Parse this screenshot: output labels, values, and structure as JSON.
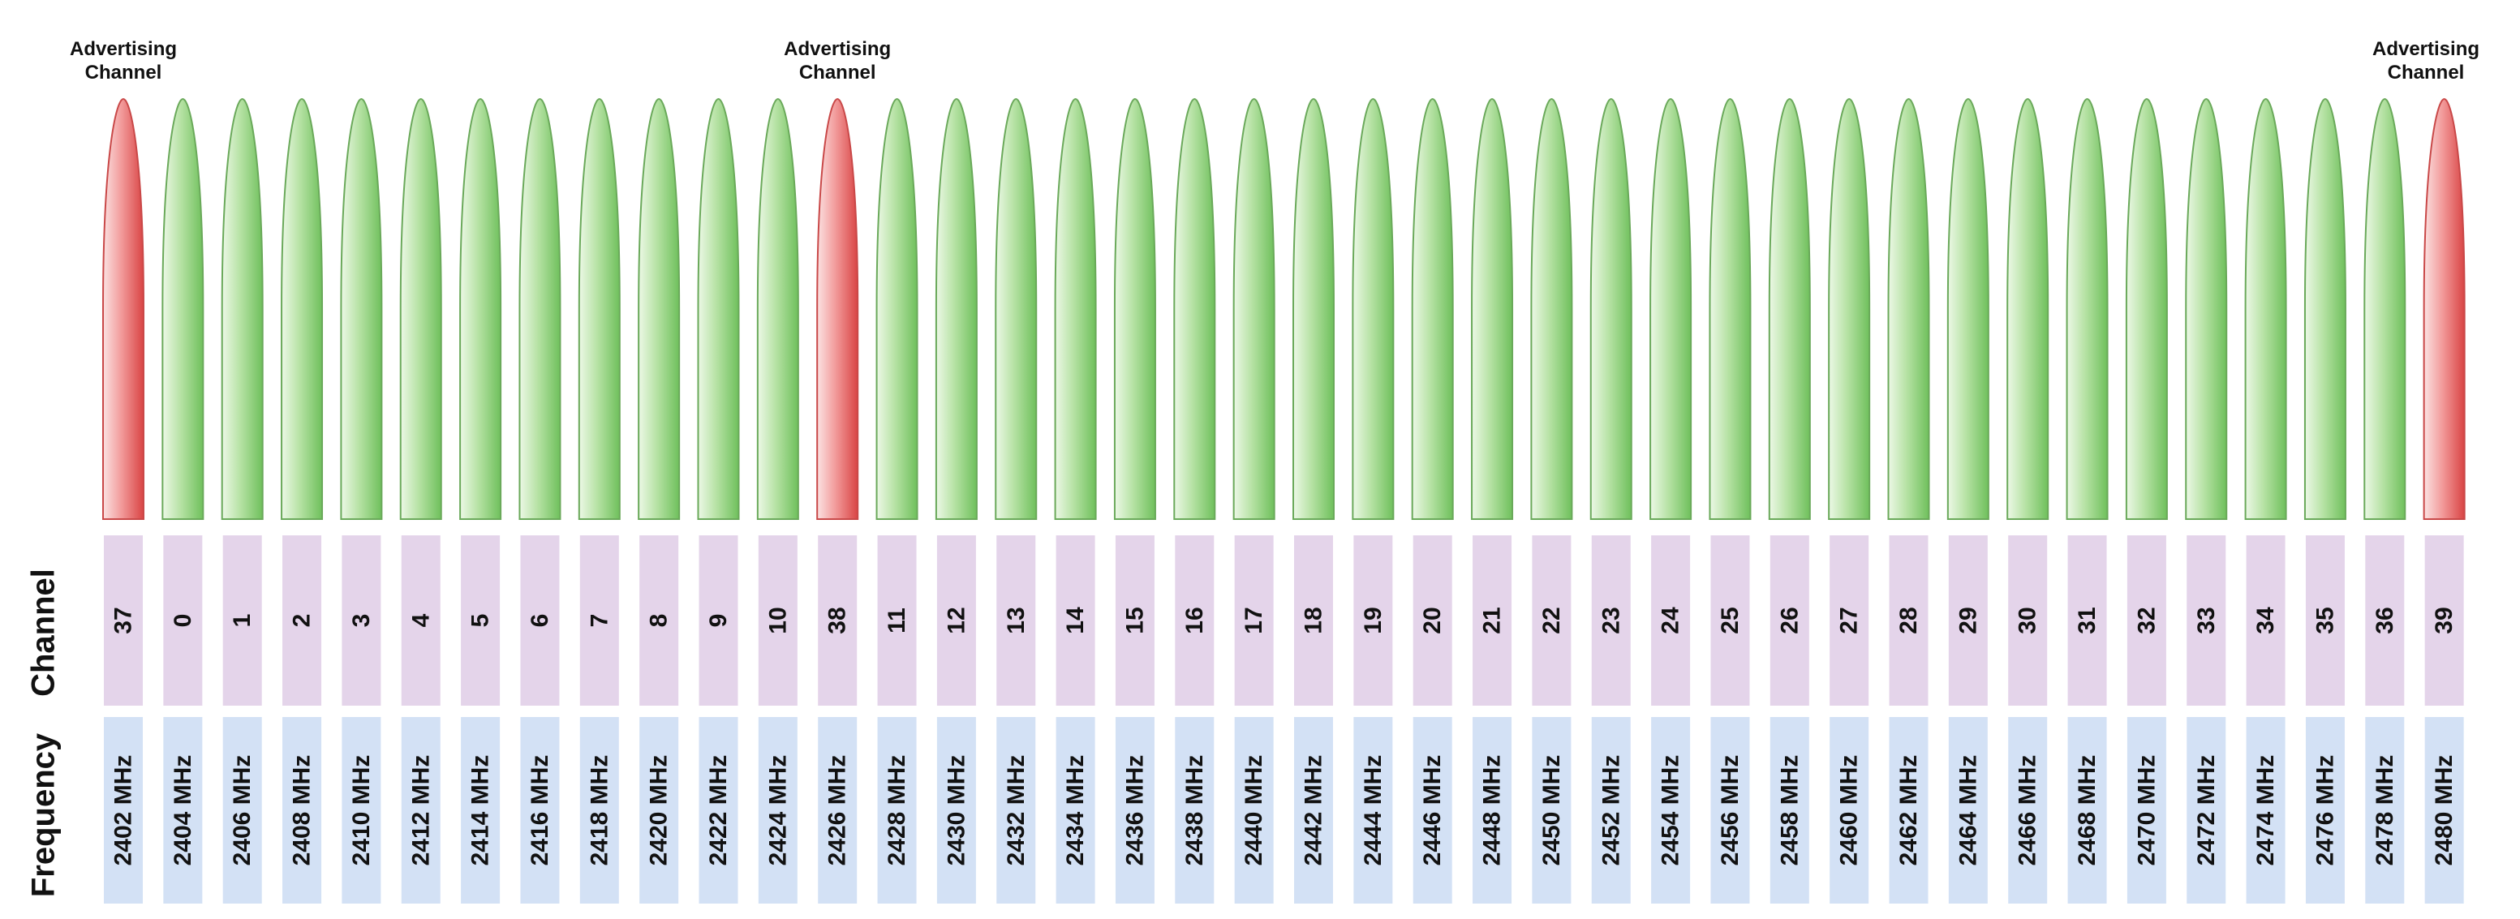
{
  "row_labels": {
    "channel": "Channel",
    "frequency": "Frequency"
  },
  "advertising_label": {
    "line1": "Advertising",
    "line2": "Channel"
  },
  "colors": {
    "data_channel": "#7fc96e",
    "advertising_channel": "#e25a5a",
    "channel_cell": "#e4d4ea",
    "frequency_cell": "#d3e1f5"
  },
  "channels": [
    {
      "channel": "37",
      "frequency": "2402 MHz",
      "advertising": true
    },
    {
      "channel": "0",
      "frequency": "2404 MHz",
      "advertising": false
    },
    {
      "channel": "1",
      "frequency": "2406 MHz",
      "advertising": false
    },
    {
      "channel": "2",
      "frequency": "2408 MHz",
      "advertising": false
    },
    {
      "channel": "3",
      "frequency": "2410 MHz",
      "advertising": false
    },
    {
      "channel": "4",
      "frequency": "2412 MHz",
      "advertising": false
    },
    {
      "channel": "5",
      "frequency": "2414 MHz",
      "advertising": false
    },
    {
      "channel": "6",
      "frequency": "2416 MHz",
      "advertising": false
    },
    {
      "channel": "7",
      "frequency": "2418 MHz",
      "advertising": false
    },
    {
      "channel": "8",
      "frequency": "2420 MHz",
      "advertising": false
    },
    {
      "channel": "9",
      "frequency": "2422 MHz",
      "advertising": false
    },
    {
      "channel": "10",
      "frequency": "2424 MHz",
      "advertising": false
    },
    {
      "channel": "38",
      "frequency": "2426 MHz",
      "advertising": true
    },
    {
      "channel": "11",
      "frequency": "2428 MHz",
      "advertising": false
    },
    {
      "channel": "12",
      "frequency": "2430 MHz",
      "advertising": false
    },
    {
      "channel": "13",
      "frequency": "2432 MHz",
      "advertising": false
    },
    {
      "channel": "14",
      "frequency": "2434 MHz",
      "advertising": false
    },
    {
      "channel": "15",
      "frequency": "2436 MHz",
      "advertising": false
    },
    {
      "channel": "16",
      "frequency": "2438 MHz",
      "advertising": false
    },
    {
      "channel": "17",
      "frequency": "2440 MHz",
      "advertising": false
    },
    {
      "channel": "18",
      "frequency": "2442 MHz",
      "advertising": false
    },
    {
      "channel": "19",
      "frequency": "2444 MHz",
      "advertising": false
    },
    {
      "channel": "20",
      "frequency": "2446 MHz",
      "advertising": false
    },
    {
      "channel": "21",
      "frequency": "2448 MHz",
      "advertising": false
    },
    {
      "channel": "22",
      "frequency": "2450 MHz",
      "advertising": false
    },
    {
      "channel": "23",
      "frequency": "2452 MHz",
      "advertising": false
    },
    {
      "channel": "24",
      "frequency": "2454 MHz",
      "advertising": false
    },
    {
      "channel": "25",
      "frequency": "2456 MHz",
      "advertising": false
    },
    {
      "channel": "26",
      "frequency": "2458 MHz",
      "advertising": false
    },
    {
      "channel": "27",
      "frequency": "2460 MHz",
      "advertising": false
    },
    {
      "channel": "28",
      "frequency": "2462 MHz",
      "advertising": false
    },
    {
      "channel": "29",
      "frequency": "2464 MHz",
      "advertising": false
    },
    {
      "channel": "30",
      "frequency": "2466 MHz",
      "advertising": false
    },
    {
      "channel": "31",
      "frequency": "2468 MHz",
      "advertising": false
    },
    {
      "channel": "32",
      "frequency": "2470 MHz",
      "advertising": false
    },
    {
      "channel": "33",
      "frequency": "2472 MHz",
      "advertising": false
    },
    {
      "channel": "34",
      "frequency": "2474 MHz",
      "advertising": false
    },
    {
      "channel": "35",
      "frequency": "2476 MHz",
      "advertising": false
    },
    {
      "channel": "36",
      "frequency": "2478 MHz",
      "advertising": false
    },
    {
      "channel": "39",
      "frequency": "2480 MHz",
      "advertising": true
    }
  ]
}
